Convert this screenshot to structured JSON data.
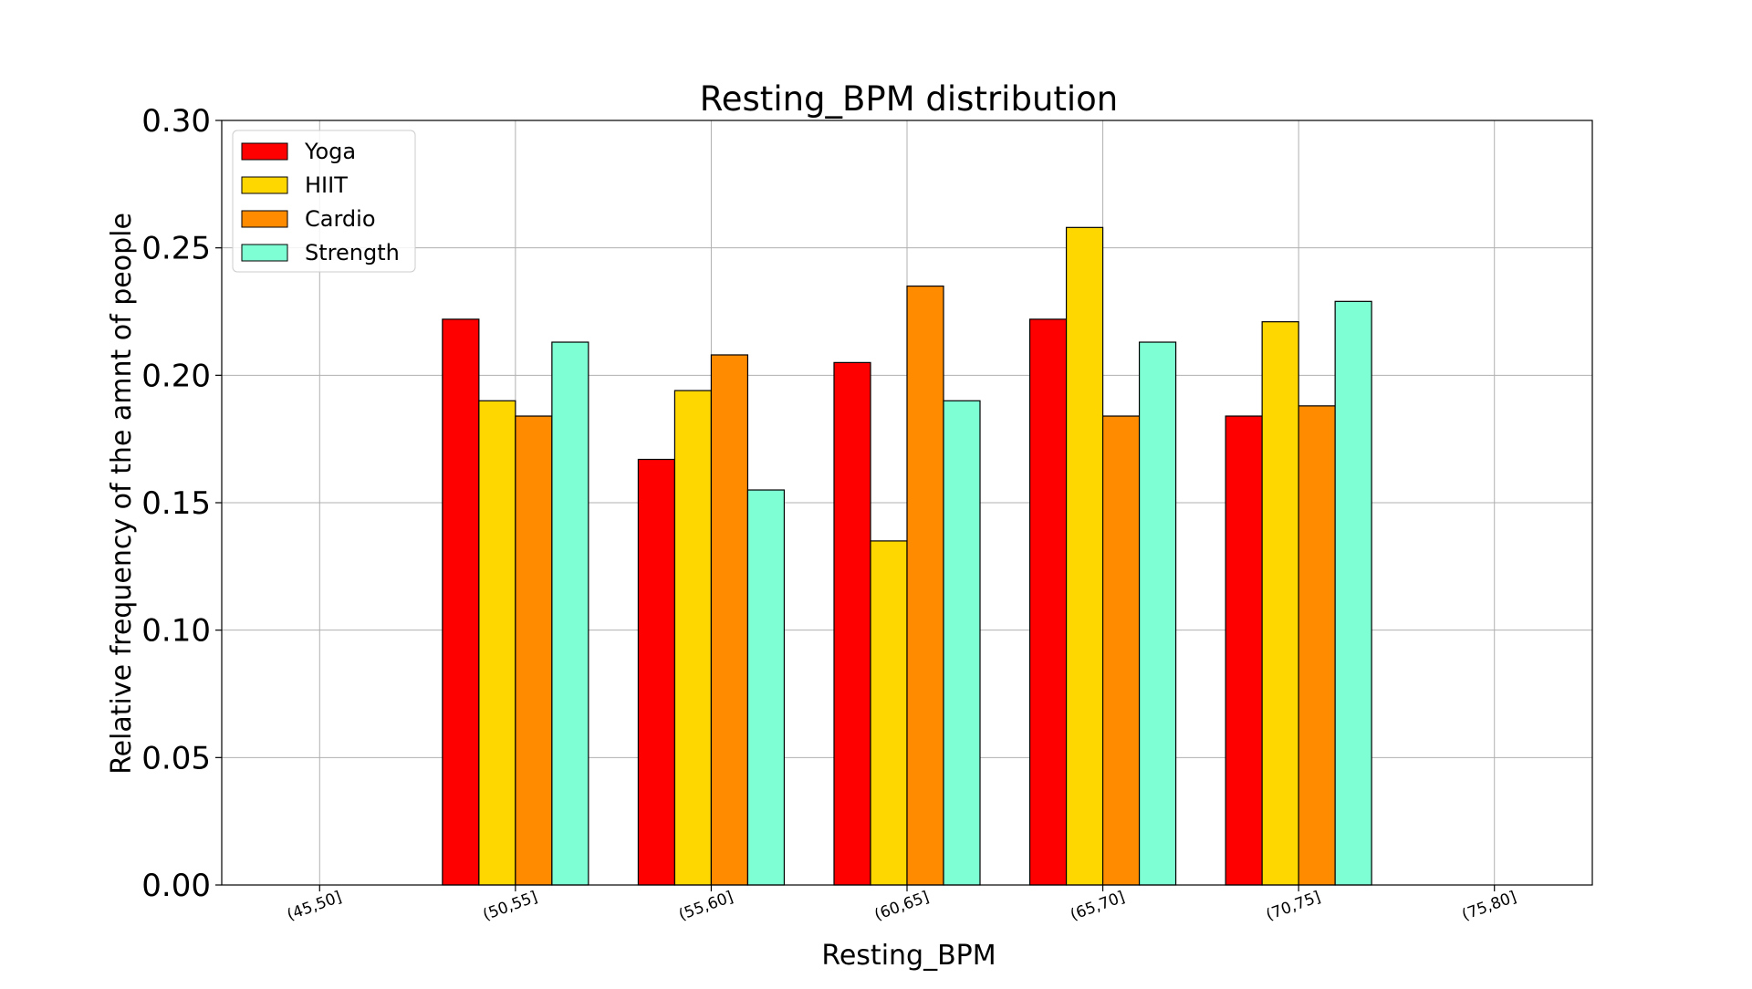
{
  "chart_data": {
    "type": "bar",
    "title": "Resting_BPM distribution",
    "xlabel": "Resting_BPM",
    "ylabel": "Relative frequency of the amnt of people",
    "categories": [
      "(45,50]",
      "(50,55]",
      "(55,60]",
      "(60,65]",
      "(65,70]",
      "(70,75]",
      "(75,80]"
    ],
    "ylim": [
      0,
      0.3
    ],
    "yticks": [
      "0.00",
      "0.05",
      "0.10",
      "0.15",
      "0.20",
      "0.25",
      "0.30"
    ],
    "grid": true,
    "legend_position": "top-left",
    "series": [
      {
        "name": "Yoga",
        "color": "#ff0000",
        "values": [
          0,
          0.222,
          0.167,
          0.205,
          0.222,
          0.184,
          0
        ]
      },
      {
        "name": "HIIT",
        "color": "#ffd700",
        "values": [
          0,
          0.19,
          0.194,
          0.135,
          0.258,
          0.221,
          0
        ]
      },
      {
        "name": "Cardio",
        "color": "#ff8c00",
        "values": [
          0,
          0.184,
          0.208,
          0.235,
          0.184,
          0.188,
          0
        ]
      },
      {
        "name": "Strength",
        "color": "#7fffd4",
        "values": [
          0,
          0.213,
          0.155,
          0.19,
          0.213,
          0.229,
          0
        ]
      }
    ]
  }
}
